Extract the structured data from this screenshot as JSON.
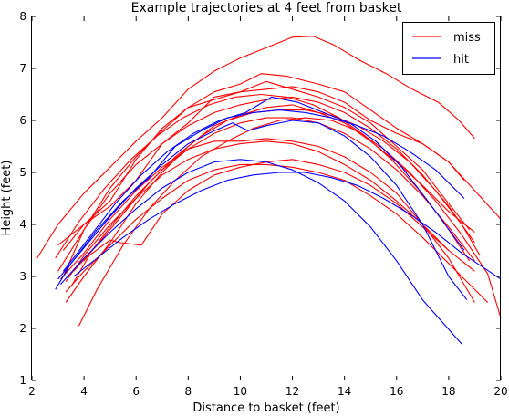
{
  "chart_data": {
    "type": "line",
    "title": "Example trajectories at 4 feet from basket",
    "xlabel": "Distance to basket (feet)",
    "ylabel": "Height (feet)",
    "xlim": [
      2,
      20
    ],
    "ylim": [
      1,
      8
    ],
    "xticks": [
      "2",
      "4",
      "6",
      "8",
      "10",
      "12",
      "14",
      "16",
      "18",
      "20"
    ],
    "yticks": [
      "1",
      "2",
      "3",
      "4",
      "5",
      "6",
      "7",
      "8"
    ],
    "legend_position": "top-right",
    "legend": [
      {
        "label": "miss",
        "color": "#ff0000"
      },
      {
        "label": "hit",
        "color": "#0000ff"
      }
    ],
    "colors": {
      "miss": "#ff0000",
      "hit": "#0000ff"
    },
    "series": [
      {
        "group": "miss",
        "x": [
          2.2,
          3,
          4,
          5,
          6,
          7,
          8,
          9,
          10,
          11,
          12,
          12.8,
          13.6,
          14.6,
          15.6,
          16.6,
          17.6,
          18.4,
          19
        ],
        "y": [
          3.35,
          4.0,
          4.6,
          5.1,
          5.6,
          6.05,
          6.6,
          6.95,
          7.2,
          7.4,
          7.6,
          7.62,
          7.45,
          7.15,
          6.9,
          6.6,
          6.35,
          6.0,
          5.65
        ]
      },
      {
        "group": "miss",
        "x": [
          3.2,
          4,
          5,
          6,
          7,
          8,
          9,
          10,
          10.8,
          11.8,
          13,
          14,
          15,
          16,
          17,
          18,
          18.6
        ],
        "y": [
          3.0,
          3.9,
          4.7,
          5.3,
          5.8,
          6.25,
          6.55,
          6.7,
          6.9,
          6.85,
          6.7,
          6.55,
          6.2,
          5.85,
          5.55,
          5.2,
          4.85
        ]
      },
      {
        "group": "miss",
        "x": [
          3.0,
          4,
          5,
          6,
          7,
          8,
          9,
          10,
          11,
          12,
          13,
          14,
          15,
          16,
          17,
          18,
          18.8
        ],
        "y": [
          3.6,
          4.0,
          4.45,
          5.25,
          5.85,
          6.25,
          6.4,
          6.55,
          6.75,
          6.6,
          6.45,
          6.25,
          5.95,
          5.5,
          5.05,
          4.4,
          3.9
        ]
      },
      {
        "group": "miss",
        "x": [
          3.2,
          4,
          5,
          6,
          7,
          8,
          9,
          10,
          11,
          12,
          13,
          14,
          15,
          16,
          17,
          18,
          19,
          20
        ],
        "y": [
          3.5,
          4.0,
          4.35,
          4.85,
          5.55,
          5.95,
          6.45,
          6.55,
          6.6,
          6.65,
          6.55,
          6.35,
          6.0,
          5.75,
          5.55,
          5.2,
          4.65,
          4.1
        ]
      },
      {
        "group": "miss",
        "x": [
          3.3,
          4,
          5,
          6,
          7,
          8,
          9,
          10,
          11,
          12,
          13,
          14,
          15,
          16,
          17,
          18,
          19
        ],
        "y": [
          2.5,
          3.0,
          3.65,
          4.4,
          5.0,
          5.5,
          5.9,
          6.1,
          6.25,
          6.3,
          6.15,
          5.95,
          5.6,
          5.2,
          4.75,
          4.25,
          3.85
        ]
      },
      {
        "group": "miss",
        "x": [
          3.8,
          4.5,
          5.5,
          6.5,
          7.5,
          8.5,
          9.5,
          10.5,
          11.5,
          12.5,
          13.5,
          14.5,
          15.5,
          16.5,
          17.5,
          18.5,
          19.5,
          20
        ],
        "y": [
          2.05,
          2.75,
          3.6,
          4.3,
          4.85,
          5.3,
          5.6,
          5.85,
          6.0,
          6.05,
          6.0,
          5.8,
          5.45,
          5.0,
          4.45,
          3.8,
          3.05,
          2.2
        ]
      },
      {
        "group": "miss",
        "x": [
          3.1,
          4,
          5,
          6,
          7,
          8,
          9,
          10,
          11,
          12,
          13,
          14,
          15,
          16,
          17,
          18,
          19
        ],
        "y": [
          2.95,
          3.45,
          4.1,
          4.65,
          5.1,
          5.45,
          5.6,
          5.6,
          5.65,
          5.6,
          5.5,
          5.3,
          5.0,
          4.6,
          4.0,
          3.35,
          2.5
        ]
      },
      {
        "group": "miss",
        "x": [
          3.5,
          4.2,
          5,
          5.4,
          6.2,
          7,
          8,
          9,
          10,
          11,
          12,
          13,
          14,
          15,
          16,
          17,
          18,
          19
        ],
        "y": [
          2.8,
          3.4,
          3.7,
          3.65,
          3.6,
          4.2,
          4.65,
          4.95,
          5.1,
          5.2,
          5.25,
          5.15,
          5.0,
          4.75,
          4.4,
          3.95,
          3.5,
          3.1
        ]
      },
      {
        "group": "miss",
        "x": [
          3.3,
          4,
          5,
          6,
          7,
          8,
          9,
          10,
          11,
          12,
          13,
          14,
          15,
          16,
          17,
          18,
          19.5
        ],
        "y": [
          2.7,
          3.1,
          3.6,
          4.1,
          4.5,
          4.85,
          5.05,
          5.15,
          5.15,
          5.1,
          5.0,
          4.85,
          4.55,
          4.2,
          3.75,
          3.25,
          2.5
        ]
      },
      {
        "group": "miss",
        "x": [
          3.0,
          4,
          5,
          6,
          7,
          8,
          9,
          10,
          11,
          12,
          13,
          14,
          15,
          16,
          17,
          18,
          19
        ],
        "y": [
          3.1,
          3.9,
          4.6,
          5.15,
          5.55,
          5.9,
          6.15,
          6.3,
          6.4,
          6.45,
          6.35,
          6.15,
          5.85,
          5.45,
          4.95,
          4.35,
          3.65
        ]
      },
      {
        "group": "miss",
        "x": [
          3.6,
          4.5,
          5.5,
          6.5,
          7.5,
          8.5,
          9.5,
          10.5,
          11.5,
          12.5,
          13.5,
          14.5,
          15.5,
          16.5,
          17.5,
          18.5,
          19.2
        ],
        "y": [
          3.1,
          3.6,
          4.2,
          4.8,
          5.3,
          5.7,
          6.0,
          6.15,
          6.2,
          6.2,
          6.1,
          5.9,
          5.6,
          5.2,
          4.65,
          4.0,
          3.4
        ]
      },
      {
        "group": "miss",
        "x": [
          3.3,
          4,
          5,
          6,
          7,
          8,
          9,
          10,
          11,
          12,
          13,
          14,
          15,
          16,
          17,
          18
        ],
        "y": [
          2.9,
          3.4,
          4.0,
          4.5,
          4.95,
          5.25,
          5.45,
          5.55,
          5.6,
          5.55,
          5.4,
          5.15,
          4.85,
          4.45,
          4.0,
          3.5
        ]
      },
      {
        "group": "miss",
        "x": [
          4.0,
          5,
          6,
          7,
          8,
          9,
          10,
          11,
          12,
          13,
          14,
          15,
          16,
          17,
          18,
          19
        ],
        "y": [
          3.3,
          3.95,
          4.55,
          5.05,
          5.45,
          5.75,
          5.95,
          6.05,
          6.05,
          5.95,
          5.75,
          5.45,
          5.05,
          4.55,
          3.95,
          3.3
        ]
      },
      {
        "group": "miss",
        "x": [
          2.9,
          3.8,
          4.8,
          5.8,
          6.8,
          7.8,
          8.8,
          9.8,
          10.8,
          11.8,
          12.8,
          13.8,
          14.8,
          15.8,
          16.8,
          17.8,
          18.8
        ],
        "y": [
          3.35,
          4.05,
          4.7,
          5.25,
          5.7,
          6.05,
          6.3,
          6.45,
          6.5,
          6.45,
          6.3,
          6.05,
          5.7,
          5.25,
          4.7,
          4.05,
          3.3
        ]
      }
    ],
    "series_hit": [
      {
        "group": "hit",
        "x": [
          2.9,
          3.5,
          4.5,
          5.5,
          6.5,
          7.5,
          8.5,
          9.5,
          10.5,
          11.5,
          12.5,
          13.5,
          14.5,
          15.5,
          16.5,
          17.5,
          18.6
        ],
        "y": [
          2.75,
          3.25,
          3.9,
          4.45,
          4.9,
          5.5,
          5.8,
          6.05,
          6.15,
          6.2,
          6.15,
          6.05,
          5.9,
          5.7,
          5.4,
          5.05,
          4.5
        ]
      },
      {
        "group": "hit",
        "x": [
          3.0,
          4,
          5,
          6,
          7,
          8,
          9,
          9.7,
          10.3,
          11,
          12,
          13,
          14,
          15,
          16,
          17,
          18,
          18.7
        ],
        "y": [
          2.95,
          3.55,
          4.15,
          4.7,
          5.15,
          5.55,
          5.8,
          5.95,
          5.8,
          5.9,
          6.0,
          5.95,
          5.7,
          5.3,
          4.75,
          4.0,
          3.0,
          2.55
        ]
      },
      {
        "group": "hit",
        "x": [
          3.2,
          4.2,
          5.2,
          6.2,
          7.2,
          8.2,
          9.2,
          10.2,
          11.2,
          12.2,
          13.2,
          14.2,
          15.2,
          16.2,
          17.2,
          18.6
        ],
        "y": [
          3.1,
          3.75,
          4.4,
          4.95,
          5.4,
          5.75,
          6.0,
          6.15,
          6.45,
          6.35,
          6.15,
          5.95,
          5.6,
          5.1,
          4.45,
          3.5
        ]
      },
      {
        "group": "hit",
        "x": [
          3.1,
          4,
          5,
          6,
          7,
          8,
          9,
          10,
          11,
          12,
          13,
          14,
          15,
          16,
          17,
          18.5
        ],
        "y": [
          2.85,
          3.35,
          3.85,
          4.3,
          4.7,
          5.0,
          5.2,
          5.25,
          5.2,
          5.05,
          4.8,
          4.45,
          3.95,
          3.3,
          2.55,
          1.7
        ]
      },
      {
        "group": "hit",
        "x": [
          3.6,
          4.5,
          5.5,
          6.5,
          7.5,
          8.5,
          9.5,
          10.5,
          11.5,
          12.5,
          13.5,
          14.5,
          15.5,
          16.5,
          17.5,
          18.5,
          20
        ],
        "y": [
          3.0,
          3.35,
          3.75,
          4.1,
          4.4,
          4.65,
          4.85,
          4.95,
          5.0,
          5.0,
          4.9,
          4.75,
          4.5,
          4.2,
          3.85,
          3.45,
          2.95
        ]
      }
    ]
  }
}
